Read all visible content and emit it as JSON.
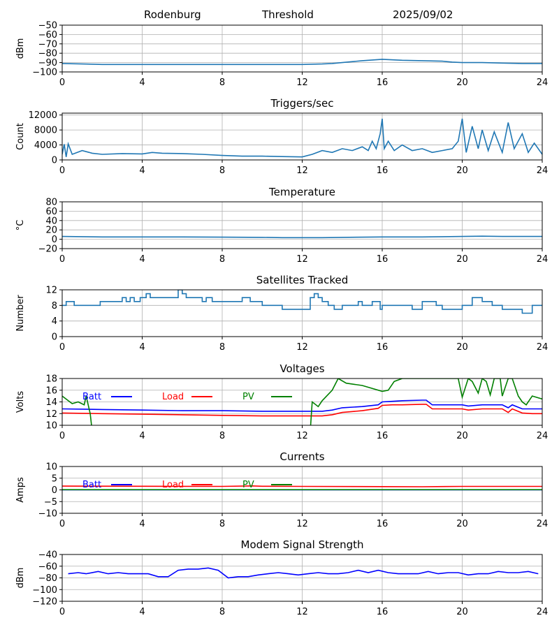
{
  "header": {
    "site": "Rodenburg",
    "mode": "Threshold",
    "date": "2025/09/02"
  },
  "chart_data": [
    {
      "id": "threshold",
      "type": "line",
      "title": "",
      "xlabel": "",
      "ylabel": "dBm",
      "xlim": [
        0,
        24
      ],
      "ylim": [
        -100,
        -50
      ],
      "x_ticks": [
        "0",
        "4",
        "8",
        "12",
        "16",
        "20",
        "24"
      ],
      "y_ticks": [
        "−100",
        "−90",
        "−80",
        "−70",
        "−60",
        "−50"
      ],
      "y_tick_values": [
        -100,
        -90,
        -80,
        -70,
        -60,
        -50
      ],
      "grid": true,
      "series": [
        {
          "color": "#1f77b4",
          "x": [
            0,
            1,
            2,
            3,
            4,
            5,
            6,
            7,
            8,
            9,
            10,
            11,
            12,
            13,
            13.5,
            14,
            15,
            16,
            17,
            18,
            19,
            19.5,
            20,
            21,
            22,
            23,
            24
          ],
          "y": [
            -91,
            -91.5,
            -92,
            -92,
            -92,
            -92,
            -92,
            -92,
            -92,
            -92,
            -92,
            -92,
            -92,
            -91.5,
            -91,
            -90,
            -88,
            -86.5,
            -87.5,
            -88,
            -88.5,
            -89.5,
            -90,
            -90,
            -90.5,
            -91,
            -91
          ]
        }
      ]
    },
    {
      "id": "triggers",
      "type": "line",
      "title": "Triggers/sec",
      "xlabel": "",
      "ylabel": "Count",
      "xlim": [
        0,
        24
      ],
      "ylim": [
        0,
        12500
      ],
      "x_ticks": [
        "0",
        "4",
        "8",
        "12",
        "16",
        "20",
        "24"
      ],
      "y_ticks": [
        "0",
        "4000",
        "8000",
        "12000"
      ],
      "y_tick_values": [
        0,
        4000,
        8000,
        12000
      ],
      "grid": true,
      "series": [
        {
          "color": "#1f77b4",
          "x": [
            0,
            0.1,
            0.2,
            0.3,
            0.5,
            1,
            1.5,
            2,
            3,
            4,
            4.5,
            5,
            6,
            7,
            8,
            9,
            10,
            11,
            12,
            12.5,
            13,
            13.5,
            14,
            14.5,
            15,
            15.3,
            15.5,
            15.7,
            15.9,
            16,
            16.1,
            16.3,
            16.6,
            17,
            17.5,
            18,
            18.5,
            19,
            19.5,
            19.8,
            20,
            20.2,
            20.5,
            20.8,
            21,
            21.3,
            21.6,
            22,
            22.3,
            22.6,
            23,
            23.3,
            23.6,
            24
          ],
          "y": [
            1500,
            4200,
            800,
            4300,
            1500,
            2500,
            1800,
            1500,
            1700,
            1600,
            2000,
            1800,
            1700,
            1500,
            1200,
            1000,
            1000,
            900,
            800,
            1500,
            2500,
            2000,
            3000,
            2500,
            3500,
            2500,
            5000,
            3000,
            7000,
            11000,
            3000,
            5000,
            2500,
            4000,
            2500,
            3000,
            2000,
            2500,
            3000,
            5000,
            11000,
            2000,
            9000,
            3000,
            8000,
            2500,
            7500,
            2000,
            10000,
            3000,
            7000,
            2000,
            4500,
            1500
          ]
        }
      ]
    },
    {
      "id": "temperature",
      "type": "line",
      "title": "Temperature",
      "xlabel": "",
      "ylabel": "°C",
      "xlim": [
        0,
        24
      ],
      "ylim": [
        -20,
        80
      ],
      "x_ticks": [
        "0",
        "4",
        "8",
        "12",
        "16",
        "20",
        "24"
      ],
      "y_ticks": [
        "−20",
        "0",
        "20",
        "40",
        "60",
        "80"
      ],
      "y_tick_values": [
        -20,
        0,
        20,
        40,
        60,
        80
      ],
      "grid": true,
      "series": [
        {
          "color": "#1f77b4",
          "x": [
            0,
            2,
            4,
            6,
            8,
            10,
            11,
            12,
            13,
            14,
            16,
            18,
            20,
            21,
            22,
            23,
            24
          ],
          "y": [
            6,
            5,
            5,
            5,
            4.5,
            4,
            3.5,
            3.5,
            3.5,
            4,
            5,
            5,
            6,
            6.5,
            6,
            6,
            6
          ]
        }
      ]
    },
    {
      "id": "satellites",
      "type": "line",
      "title": "Satellites Tracked",
      "xlabel": "",
      "ylabel": "Number",
      "xlim": [
        0,
        24
      ],
      "ylim": [
        0,
        12
      ],
      "x_ticks": [
        "0",
        "4",
        "8",
        "12",
        "16",
        "20",
        "24"
      ],
      "y_ticks": [
        "0",
        "4",
        "8",
        "12"
      ],
      "y_tick_values": [
        0,
        4,
        8,
        12
      ],
      "grid": true,
      "series": [
        {
          "color": "#1f77b4",
          "step": true,
          "x": [
            0,
            0.2,
            0.4,
            0.6,
            1,
            1.2,
            1.9,
            2.5,
            2.7,
            3,
            3.2,
            3.4,
            3.6,
            3.9,
            4.2,
            4.4,
            4.8,
            5,
            5.8,
            6,
            6.2,
            6.6,
            6.8,
            7,
            7.2,
            7.5,
            8,
            8.5,
            9,
            9.4,
            10,
            10.5,
            11,
            11.5,
            12,
            12.4,
            12.6,
            12.8,
            13,
            13.3,
            13.6,
            14,
            14.5,
            14.8,
            15,
            15.5,
            15.9,
            16,
            17,
            17.5,
            18,
            18.7,
            19,
            19.5,
            20,
            20.5,
            21,
            21.5,
            22,
            22.5,
            23,
            23.5,
            24
          ],
          "y": [
            8,
            9,
            9,
            8,
            8,
            8,
            9,
            9,
            9,
            10,
            9,
            10,
            9,
            10,
            11,
            10,
            10,
            10,
            12,
            11,
            10,
            10,
            10,
            9,
            10,
            9,
            9,
            9,
            10,
            9,
            8,
            8,
            7,
            7,
            7,
            10,
            11,
            10,
            9,
            8,
            7,
            8,
            8,
            9,
            8,
            9,
            7,
            8,
            8,
            7,
            9,
            8,
            7,
            7,
            8,
            10,
            9,
            8,
            7,
            7,
            6,
            8,
            8
          ]
        }
      ]
    },
    {
      "id": "voltages",
      "type": "line",
      "title": "Voltages",
      "xlabel": "",
      "ylabel": "Volts",
      "xlim": [
        0,
        24
      ],
      "ylim": [
        10,
        18
      ],
      "x_ticks": [
        "0",
        "4",
        "8",
        "12",
        "16",
        "20",
        "24"
      ],
      "y_ticks": [
        "10",
        "12",
        "14",
        "16",
        "18"
      ],
      "y_tick_values": [
        10,
        12,
        14,
        16,
        18
      ],
      "grid": true,
      "legend": [
        "Batt",
        "Load",
        "PV"
      ],
      "series": [
        {
          "name": "Batt",
          "color": "#0000ff",
          "x": [
            0,
            2,
            4,
            6,
            8,
            10,
            12,
            13,
            13.5,
            14,
            15,
            15.8,
            16,
            16.5,
            17,
            18,
            18.2,
            18.5,
            19,
            20,
            20.3,
            21,
            22,
            22.3,
            22.5,
            23,
            23.5,
            24
          ],
          "y": [
            12.8,
            12.7,
            12.6,
            12.5,
            12.5,
            12.4,
            12.4,
            12.4,
            12.6,
            13,
            13.2,
            13.5,
            14,
            14.1,
            14.2,
            14.3,
            14.3,
            13.5,
            13.5,
            13.5,
            13.3,
            13.5,
            13.5,
            13,
            13.5,
            12.8,
            12.8,
            12.8
          ]
        },
        {
          "name": "Load",
          "color": "#ff0000",
          "x": [
            0,
            2,
            4,
            6,
            8,
            10,
            12,
            13,
            13.5,
            14,
            15,
            15.8,
            16,
            16.5,
            17,
            18,
            18.2,
            18.5,
            19,
            20,
            20.3,
            21,
            22,
            22.3,
            22.5,
            23,
            23.5,
            24
          ],
          "y": [
            12.1,
            12,
            11.9,
            11.8,
            11.7,
            11.6,
            11.6,
            11.6,
            11.8,
            12.2,
            12.5,
            12.9,
            13.4,
            13.5,
            13.5,
            13.6,
            13.6,
            12.8,
            12.8,
            12.8,
            12.6,
            12.8,
            12.8,
            12.2,
            12.8,
            12.1,
            12,
            12
          ]
        },
        {
          "name": "PV",
          "color": "#008000",
          "x": [
            0,
            0.5,
            0.8,
            1.1,
            1.2,
            1.4,
            1.5,
            12.4,
            12.5,
            12.8,
            13,
            13.5,
            13.8,
            14.2,
            15,
            16,
            16.3,
            16.6,
            17,
            19.8,
            20,
            20.3,
            20.5,
            20.8,
            21,
            21.2,
            21.4,
            21.6,
            21.9,
            22,
            22.3,
            22.5,
            22.8,
            23,
            23.2,
            23.5,
            24
          ],
          "y": [
            15,
            13.7,
            14,
            13.5,
            15,
            12,
            9,
            9,
            14,
            13.2,
            14.2,
            16,
            18,
            17.2,
            16.8,
            15.8,
            16,
            17.5,
            18,
            18,
            14.8,
            18,
            17.5,
            15.5,
            18,
            17.5,
            15.2,
            18,
            18,
            15,
            18,
            18,
            15,
            14,
            13.5,
            15,
            14.5
          ]
        }
      ]
    },
    {
      "id": "currents",
      "type": "line",
      "title": "Currents",
      "xlabel": "",
      "ylabel": "Amps",
      "xlim": [
        0,
        24
      ],
      "ylim": [
        -10,
        10
      ],
      "x_ticks": [
        "0",
        "4",
        "8",
        "12",
        "16",
        "20",
        "24"
      ],
      "y_ticks": [
        "−10",
        "−5",
        "0",
        "5",
        "10"
      ],
      "y_tick_values": [
        -10,
        -5,
        0,
        5,
        10
      ],
      "grid": true,
      "legend": [
        "Batt",
        "Load",
        "PV"
      ],
      "series": [
        {
          "name": "Batt",
          "color": "#0000ff",
          "x": [
            0,
            24
          ],
          "y": [
            0,
            0
          ]
        },
        {
          "name": "Load",
          "color": "#ff0000",
          "x": [
            0,
            4,
            8,
            9.5,
            10,
            12,
            16,
            18,
            20,
            24
          ],
          "y": [
            1.6,
            1.55,
            1.5,
            1.7,
            1.55,
            1.5,
            1.4,
            1.35,
            1.5,
            1.5
          ]
        },
        {
          "name": "PV",
          "color": "#008000",
          "x": [
            0,
            24
          ],
          "y": [
            0.1,
            0.1
          ]
        }
      ]
    },
    {
      "id": "modem",
      "type": "line",
      "title": "Modem Signal Strength",
      "xlabel": "",
      "ylabel": "dBm",
      "xlim": [
        0,
        24
      ],
      "ylim": [
        -120,
        -40
      ],
      "x_ticks": [
        "0",
        "4",
        "8",
        "12",
        "16",
        "20",
        "24"
      ],
      "y_ticks": [
        "−120",
        "−100",
        "−80",
        "−60",
        "−40"
      ],
      "y_tick_values": [
        -120,
        -100,
        -80,
        -60,
        -40
      ],
      "grid": true,
      "series": [
        {
          "color": "#0000ff",
          "x": [
            0.3,
            0.8,
            1.2,
            1.8,
            2.3,
            2.8,
            3.3,
            3.8,
            4.3,
            4.8,
            5.3,
            5.8,
            6.3,
            6.8,
            7.3,
            7.8,
            8.3,
            8.8,
            9.3,
            9.8,
            10.3,
            10.8,
            11.3,
            11.8,
            12.3,
            12.8,
            13.3,
            13.8,
            14.3,
            14.8,
            15.3,
            15.8,
            16.3,
            16.8,
            17.3,
            17.8,
            18.3,
            18.8,
            19.3,
            19.8,
            20.3,
            20.8,
            21.3,
            21.8,
            22.3,
            22.8,
            23.3,
            23.8
          ],
          "y": [
            -73,
            -71,
            -73,
            -69,
            -73,
            -71,
            -73,
            -73,
            -73,
            -78,
            -78,
            -67,
            -65,
            -65,
            -63,
            -67,
            -80,
            -78,
            -78,
            -75,
            -73,
            -71,
            -73,
            -75,
            -73,
            -71,
            -73,
            -73,
            -71,
            -67,
            -71,
            -67,
            -71,
            -73,
            -73,
            -73,
            -69,
            -73,
            -71,
            -71,
            -75,
            -73,
            -73,
            -69,
            -71,
            -71,
            -69,
            -73
          ]
        }
      ]
    }
  ]
}
